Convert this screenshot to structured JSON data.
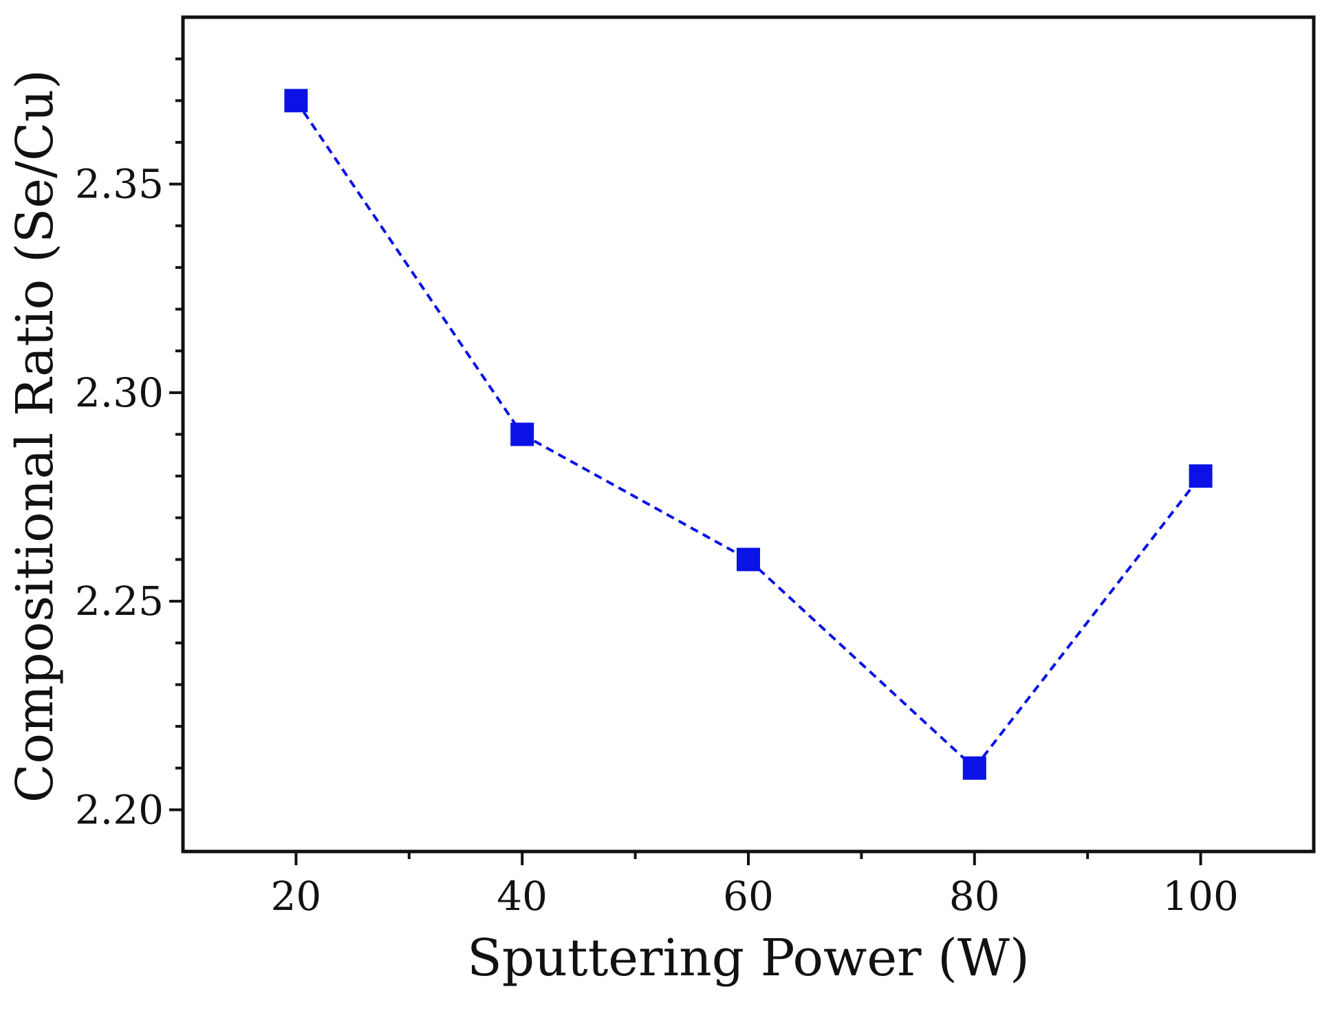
{
  "chart_data": {
    "type": "line",
    "title": "",
    "xlabel": "Sputtering Power (W)",
    "ylabel": "Compositional Ratio (Se/Cu)",
    "xlim": [
      10,
      110
    ],
    "ylim": [
      2.19,
      2.39
    ],
    "xticks": [
      20,
      40,
      60,
      80,
      100
    ],
    "xtick_labels": [
      "20",
      "40",
      "60",
      "80",
      "100"
    ],
    "yticks": [
      2.2,
      2.25,
      2.3,
      2.35
    ],
    "ytick_labels": [
      "2.20",
      "2.25",
      "2.30",
      "2.35"
    ],
    "x_minor_step": 10,
    "y_minor_step": 0.01,
    "grid": false,
    "series": [
      {
        "name": "Se/Cu",
        "x": [
          20,
          40,
          60,
          80,
          100
        ],
        "values": [
          2.37,
          2.29,
          2.26,
          2.21,
          2.28
        ],
        "color": "#0a12e6",
        "marker": "square",
        "line_style": "dashed"
      }
    ]
  }
}
